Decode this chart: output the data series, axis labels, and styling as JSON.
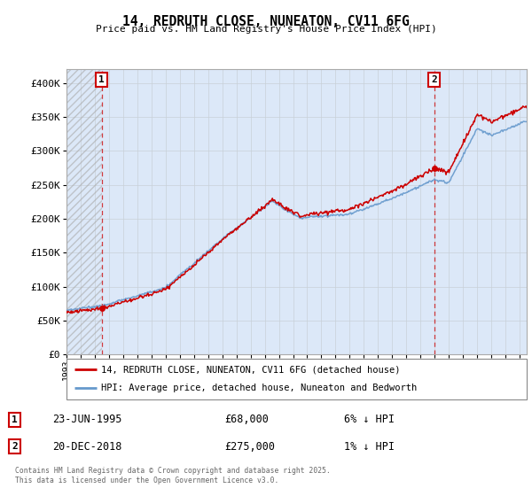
{
  "title_line1": "14, REDRUTH CLOSE, NUNEATON, CV11 6FG",
  "title_line2": "Price paid vs. HM Land Registry's House Price Index (HPI)",
  "ylim": [
    0,
    420000
  ],
  "yticks": [
    0,
    50000,
    100000,
    150000,
    200000,
    250000,
    300000,
    350000,
    400000
  ],
  "ytick_labels": [
    "£0",
    "£50K",
    "£100K",
    "£150K",
    "£200K",
    "£250K",
    "£300K",
    "£350K",
    "£400K"
  ],
  "hpi_color": "#6699cc",
  "price_color": "#cc0000",
  "sale1_year": 1995.48,
  "sale1_price": 68000,
  "sale2_year": 2018.97,
  "sale2_price": 275000,
  "legend_label1": "14, REDRUTH CLOSE, NUNEATON, CV11 6FG (detached house)",
  "legend_label2": "HPI: Average price, detached house, Nuneaton and Bedworth",
  "annotation1_date": "23-JUN-1995",
  "annotation1_price": "£68,000",
  "annotation1_hpi": "6% ↓ HPI",
  "annotation2_date": "20-DEC-2018",
  "annotation2_price": "£275,000",
  "annotation2_hpi": "1% ↓ HPI",
  "footer": "Contains HM Land Registry data © Crown copyright and database right 2025.\nThis data is licensed under the Open Government Licence v3.0.",
  "xmin": 1993,
  "xmax": 2025.5,
  "grid_color": "#c8d0d8",
  "bg_color": "#dce8f8"
}
